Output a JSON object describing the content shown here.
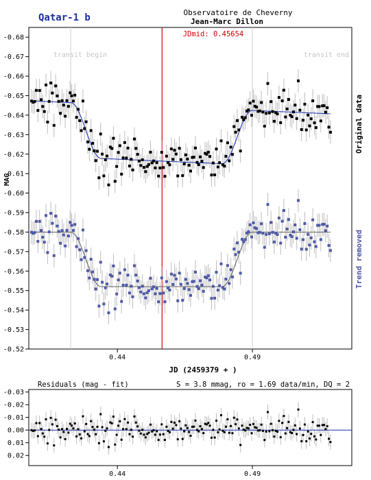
{
  "title": "Qatar-1 b",
  "observatory": "Observatoire de Cheverny",
  "observer": "Jean-Marc Dillon",
  "jdmid_label": "JDmid: 0.45654",
  "colors": {
    "title": "#1a2fa0",
    "jdmid": "#cc0000",
    "original": "#000000",
    "detrended": "#4e5aa8",
    "fit": "#1a2fb0",
    "errorbar": "#bdbdbd",
    "transit_marker": "#cfcfcf"
  },
  "chart_data": [
    {
      "type": "scatter",
      "title": "",
      "xlabel": "JD (2459379 + )",
      "ylabel": "MAG",
      "xlim": [
        0.4072,
        0.5268
      ],
      "ylim": [
        -0.52,
        -0.685
      ],
      "y_inverted": true,
      "xticks": [
        0.44,
        0.49
      ],
      "xtick_labels": [
        "0.44",
        "0.49"
      ],
      "yticks": [
        -0.68,
        -0.67,
        -0.66,
        -0.65,
        -0.64,
        -0.63,
        -0.62,
        -0.61,
        -0.6,
        -0.59,
        -0.58,
        -0.57,
        -0.56,
        -0.55,
        -0.54,
        -0.53,
        -0.52
      ],
      "ytick_labels": [
        "-0.68",
        "-0.67",
        "-0.66",
        "-0.65",
        "-0.64",
        "-0.63",
        "-0.62",
        "-0.61",
        "-0.60",
        "-0.59",
        "-0.58",
        "-0.57",
        "-0.56",
        "-0.55",
        "-0.54",
        "-0.53",
        "-0.52"
      ],
      "vertical_markers": [
        {
          "label": "transit begin",
          "x": 0.4227
        },
        {
          "label": "transit end",
          "x": 0.49
        },
        {
          "label": "JDmid: 0.45654",
          "x": 0.45654
        }
      ],
      "fit": {
        "ingress_start": 0.4227,
        "ingress_end": 0.434,
        "egress_start": 0.4787,
        "egress_end": 0.49,
        "depth": 0.028,
        "cadence_per_min": 1.69
      },
      "series": [
        {
          "name": "Original data",
          "baseline": -0.644,
          "slope_per_day": 0.06,
          "scatter": 0.006,
          "error": 0.006
        },
        {
          "name": "Trend removed",
          "baseline": -0.58,
          "slope_per_day": 0.0,
          "scatter": 0.006,
          "error": 0.006
        }
      ]
    },
    {
      "type": "scatter",
      "title": "Residuals (mag - fit)",
      "stats": "S = 3.8 mmag, ro = 1.69 data/min, DQ = 2",
      "xlim": [
        0.4072,
        0.5268
      ],
      "ylim": [
        0.028,
        -0.032
      ],
      "y_inverted": true,
      "yticks": [
        -0.03,
        -0.02,
        -0.01,
        0.0,
        0.01,
        0.02
      ],
      "ytick_labels": [
        "-0.03",
        "-0.02",
        "-0.01",
        "0.00",
        "0.01",
        "0.02"
      ],
      "xticks": [
        0.44,
        0.49
      ],
      "xtick_labels": [
        "0.44",
        "0.49"
      ],
      "rms": 0.0038
    }
  ]
}
